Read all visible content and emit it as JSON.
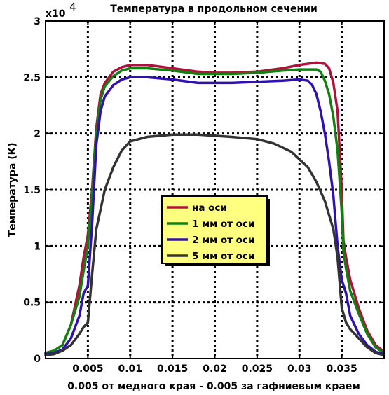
{
  "chart_data": {
    "type": "line",
    "title": "Температура в продольном сечении",
    "xlabel": "0.005 от медного края - 0.005 за гафниевым краем",
    "ylabel": "Температура (К)",
    "y_multiplier_label": "x10",
    "y_multiplier_exponent": "4",
    "xlim": [
      0,
      0.04
    ],
    "ylim": [
      0,
      3
    ],
    "x_ticks": [
      0.005,
      0.01,
      0.015,
      0.02,
      0.025,
      0.03,
      0.035
    ],
    "x_tick_labels": [
      "0.005",
      "0.01",
      "0.015",
      "0.02",
      "0.025",
      "0.03",
      "0.035"
    ],
    "y_ticks": [
      0,
      0.5,
      1,
      1.5,
      2,
      2.5,
      3
    ],
    "y_tick_labels": [
      "0",
      "0.5",
      "1",
      "1.5",
      "2",
      "2.5",
      "3"
    ],
    "grid": true,
    "legend_position": "center",
    "series": [
      {
        "name": "на оси",
        "color": "#b0103c",
        "points": [
          [
            0,
            0.05
          ],
          [
            0.001,
            0.07
          ],
          [
            0.002,
            0.12
          ],
          [
            0.003,
            0.3
          ],
          [
            0.004,
            0.65
          ],
          [
            0.0045,
            0.9
          ],
          [
            0.005,
            1.1
          ],
          [
            0.0055,
            1.5
          ],
          [
            0.006,
            2.05
          ],
          [
            0.0065,
            2.35
          ],
          [
            0.007,
            2.45
          ],
          [
            0.008,
            2.55
          ],
          [
            0.009,
            2.59
          ],
          [
            0.01,
            2.61
          ],
          [
            0.012,
            2.61
          ],
          [
            0.015,
            2.58
          ],
          [
            0.018,
            2.55
          ],
          [
            0.02,
            2.54
          ],
          [
            0.022,
            2.54
          ],
          [
            0.025,
            2.55
          ],
          [
            0.028,
            2.58
          ],
          [
            0.03,
            2.61
          ],
          [
            0.032,
            2.63
          ],
          [
            0.033,
            2.62
          ],
          [
            0.0335,
            2.58
          ],
          [
            0.034,
            2.45
          ],
          [
            0.0345,
            2.2
          ],
          [
            0.035,
            1.5
          ],
          [
            0.0352,
            1.05
          ],
          [
            0.0355,
            0.9
          ],
          [
            0.036,
            0.7
          ],
          [
            0.037,
            0.45
          ],
          [
            0.038,
            0.25
          ],
          [
            0.039,
            0.12
          ],
          [
            0.04,
            0.06
          ]
        ]
      },
      {
        "name": "1 мм от оси",
        "color": "#108010",
        "points": [
          [
            0,
            0.05
          ],
          [
            0.001,
            0.07
          ],
          [
            0.002,
            0.12
          ],
          [
            0.003,
            0.3
          ],
          [
            0.004,
            0.55
          ],
          [
            0.0045,
            0.78
          ],
          [
            0.005,
            1.0
          ],
          [
            0.0055,
            1.45
          ],
          [
            0.006,
            2.0
          ],
          [
            0.0065,
            2.3
          ],
          [
            0.007,
            2.42
          ],
          [
            0.008,
            2.51
          ],
          [
            0.009,
            2.56
          ],
          [
            0.01,
            2.58
          ],
          [
            0.012,
            2.58
          ],
          [
            0.015,
            2.56
          ],
          [
            0.018,
            2.53
          ],
          [
            0.02,
            2.53
          ],
          [
            0.022,
            2.53
          ],
          [
            0.025,
            2.54
          ],
          [
            0.028,
            2.56
          ],
          [
            0.03,
            2.57
          ],
          [
            0.032,
            2.57
          ],
          [
            0.0325,
            2.55
          ],
          [
            0.033,
            2.47
          ],
          [
            0.0335,
            2.35
          ],
          [
            0.034,
            2.15
          ],
          [
            0.0345,
            1.85
          ],
          [
            0.035,
            1.3
          ],
          [
            0.0352,
            0.95
          ],
          [
            0.0355,
            0.8
          ],
          [
            0.036,
            0.6
          ],
          [
            0.037,
            0.4
          ],
          [
            0.038,
            0.22
          ],
          [
            0.039,
            0.1
          ],
          [
            0.04,
            0.05
          ]
        ]
      },
      {
        "name": "2 мм от оси",
        "color": "#3010b0",
        "points": [
          [
            0,
            0.04
          ],
          [
            0.001,
            0.05
          ],
          [
            0.002,
            0.08
          ],
          [
            0.003,
            0.18
          ],
          [
            0.004,
            0.38
          ],
          [
            0.0045,
            0.58
          ],
          [
            0.005,
            0.65
          ],
          [
            0.0055,
            1.2
          ],
          [
            0.006,
            1.9
          ],
          [
            0.0065,
            2.2
          ],
          [
            0.007,
            2.33
          ],
          [
            0.008,
            2.43
          ],
          [
            0.009,
            2.48
          ],
          [
            0.01,
            2.5
          ],
          [
            0.012,
            2.5
          ],
          [
            0.015,
            2.48
          ],
          [
            0.018,
            2.45
          ],
          [
            0.02,
            2.45
          ],
          [
            0.022,
            2.45
          ],
          [
            0.025,
            2.46
          ],
          [
            0.028,
            2.47
          ],
          [
            0.03,
            2.48
          ],
          [
            0.031,
            2.47
          ],
          [
            0.0315,
            2.43
          ],
          [
            0.032,
            2.35
          ],
          [
            0.0325,
            2.2
          ],
          [
            0.033,
            2.0
          ],
          [
            0.0335,
            1.75
          ],
          [
            0.034,
            1.45
          ],
          [
            0.0345,
            1.0
          ],
          [
            0.035,
            0.7
          ],
          [
            0.0355,
            0.58
          ],
          [
            0.036,
            0.38
          ],
          [
            0.037,
            0.22
          ],
          [
            0.038,
            0.12
          ],
          [
            0.039,
            0.06
          ],
          [
            0.04,
            0.04
          ]
        ]
      },
      {
        "name": "5 мм от оси",
        "color": "#333333",
        "points": [
          [
            0,
            0.03
          ],
          [
            0.001,
            0.04
          ],
          [
            0.002,
            0.07
          ],
          [
            0.003,
            0.12
          ],
          [
            0.004,
            0.22
          ],
          [
            0.0045,
            0.28
          ],
          [
            0.005,
            0.32
          ],
          [
            0.0055,
            0.75
          ],
          [
            0.006,
            1.15
          ],
          [
            0.007,
            1.5
          ],
          [
            0.008,
            1.7
          ],
          [
            0.009,
            1.85
          ],
          [
            0.01,
            1.93
          ],
          [
            0.012,
            1.97
          ],
          [
            0.015,
            1.99
          ],
          [
            0.018,
            1.99
          ],
          [
            0.02,
            1.98
          ],
          [
            0.022,
            1.97
          ],
          [
            0.025,
            1.95
          ],
          [
            0.027,
            1.91
          ],
          [
            0.029,
            1.84
          ],
          [
            0.031,
            1.7
          ],
          [
            0.032,
            1.57
          ],
          [
            0.033,
            1.4
          ],
          [
            0.034,
            1.15
          ],
          [
            0.0345,
            0.9
          ],
          [
            0.035,
            0.45
          ],
          [
            0.0355,
            0.32
          ],
          [
            0.036,
            0.26
          ],
          [
            0.037,
            0.18
          ],
          [
            0.038,
            0.1
          ],
          [
            0.039,
            0.05
          ],
          [
            0.04,
            0.03
          ]
        ]
      }
    ]
  }
}
